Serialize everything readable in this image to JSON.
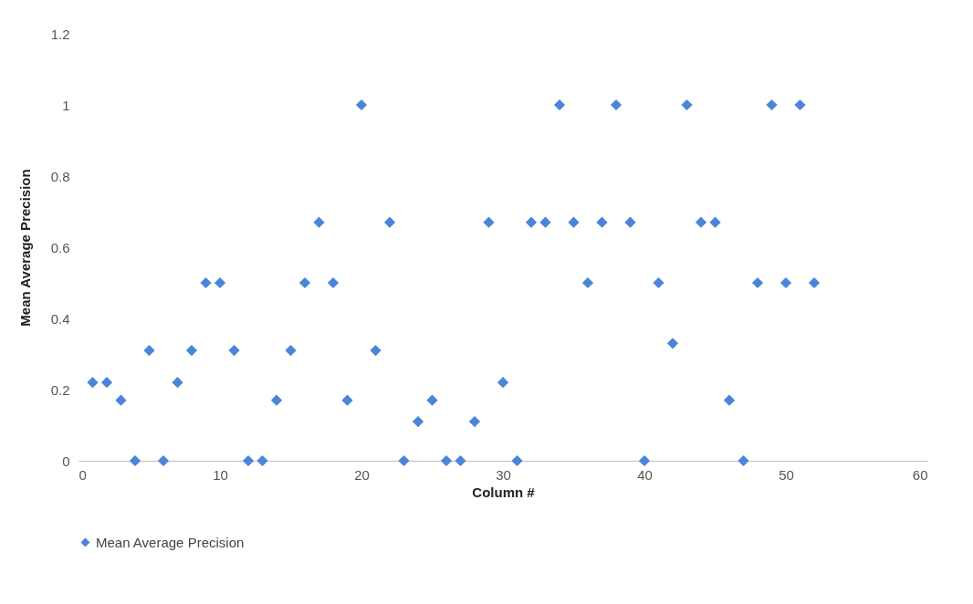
{
  "chart_data": {
    "type": "scatter",
    "xlabel": "Column #",
    "ylabel": "Mean Average Precision",
    "xlim": [
      0,
      60
    ],
    "xticks": [
      0,
      10,
      20,
      30,
      40,
      50,
      60
    ],
    "ylim": [
      0,
      1.2
    ],
    "yticks": [
      0,
      0.2,
      0.4,
      0.6,
      0.8,
      1,
      1.2
    ],
    "grid": false,
    "legend": "bottom",
    "marker": "diamond",
    "x": [
      1,
      2,
      3,
      4,
      5,
      6,
      7,
      8,
      9,
      10,
      11,
      12,
      13,
      14,
      15,
      16,
      17,
      18,
      19,
      20,
      21,
      22,
      23,
      24,
      25,
      26,
      27,
      28,
      29,
      30,
      31,
      32,
      33,
      34,
      35,
      36,
      37,
      38,
      39,
      40,
      41,
      42,
      43,
      44,
      45,
      46,
      47,
      48,
      49,
      50,
      51,
      52
    ],
    "series": [
      {
        "name": "Mean Average Precision",
        "color": "#4a86d8",
        "values": [
          0.22,
          0.22,
          0.17,
          0,
          0.31,
          0,
          0.22,
          0.31,
          0.5,
          0.5,
          0.31,
          0,
          0,
          0.17,
          0.31,
          0.5,
          0.67,
          0.5,
          0.17,
          1,
          0.31,
          0.67,
          0,
          0.11,
          0.17,
          0,
          0,
          0.11,
          0.67,
          0.22,
          0,
          0.67,
          0.67,
          1,
          0.67,
          0.5,
          0.67,
          1,
          0.67,
          0,
          0.5,
          0.33,
          1,
          0.67,
          0.67,
          0.17,
          0,
          0.5,
          1,
          0.5,
          1,
          0.5
        ]
      }
    ]
  }
}
